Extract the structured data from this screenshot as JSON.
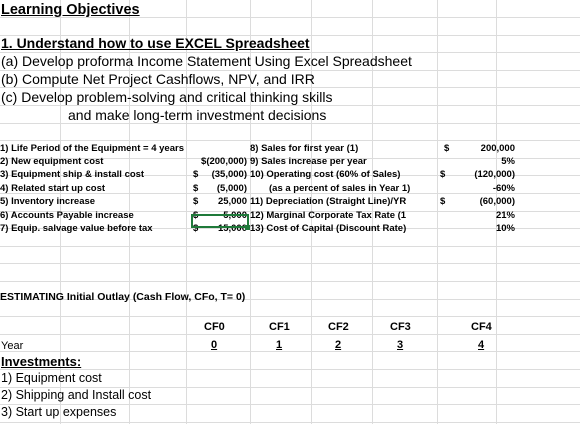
{
  "sheet": {
    "title": "Learning Objectives",
    "objective_heading": "1. Understand how to use EXCEL Spreadsheet",
    "objectives": [
      "(a) Develop proforma Income Statement Using Excel Spreadsheet",
      "(b) Compute  Net Project Cashflows, NPV,  and IRR",
      "(c) Develop problem-solving and  critical thinking skills",
      "and make long-term investment decisions"
    ],
    "left_params": [
      {
        "label": "1) Life Period of the Equipment = 4 years",
        "sym": "",
        "value": ""
      },
      {
        "label": "2) New equipment cost",
        "sym": "",
        "value": "$(200,000)"
      },
      {
        "label": "3) Equipment ship & install cost",
        "sym": "$",
        "value": "(35,000)"
      },
      {
        "label": "4) Related start up cost",
        "sym": "$",
        "value": "(5,000)"
      },
      {
        "label": "5) Inventory increase",
        "sym": "$",
        "value": "25,000"
      },
      {
        "label": "6) Accounts Payable increase",
        "sym": "$",
        "value": "5,000"
      },
      {
        "label": "7) Equip. salvage value before tax",
        "sym": "$",
        "value": "15,000"
      }
    ],
    "right_params": [
      {
        "label": "8) Sales for first year (1)",
        "sym": "$",
        "value": "200,000"
      },
      {
        "label": "9) Sales increase per year",
        "sym": "",
        "value": "5%"
      },
      {
        "label": "10) Operating cost (60% of Sales)",
        "sym": "$",
        "value": "(120,000)"
      },
      {
        "label": "(as a percent of sales in Year 1)",
        "sym": "",
        "value": "-60%"
      },
      {
        "label": "11) Depreciation (Straight Line)/YR",
        "sym": "$",
        "value": "(60,000)"
      },
      {
        "label": "12) Marginal Corporate Tax Rate (1",
        "sym": "",
        "value": "21%"
      },
      {
        "label": "13) Cost of Capital (Discount Rate)",
        "sym": "",
        "value": "10%"
      }
    ],
    "outlay_heading": "ESTIMATING  Initial Outlay (Cash Flow, CFo, T= 0)",
    "cf_headers": [
      "CF0",
      "CF1",
      "CF2",
      "CF3",
      "CF4"
    ],
    "cf_years": [
      "0",
      "1",
      "2",
      "3",
      "4"
    ],
    "year_label": "Year",
    "investments_label": "Investments:",
    "investment_items": [
      "1) Equipment cost",
      "2) Shipping and Install cost",
      "3) Start up expenses"
    ]
  }
}
